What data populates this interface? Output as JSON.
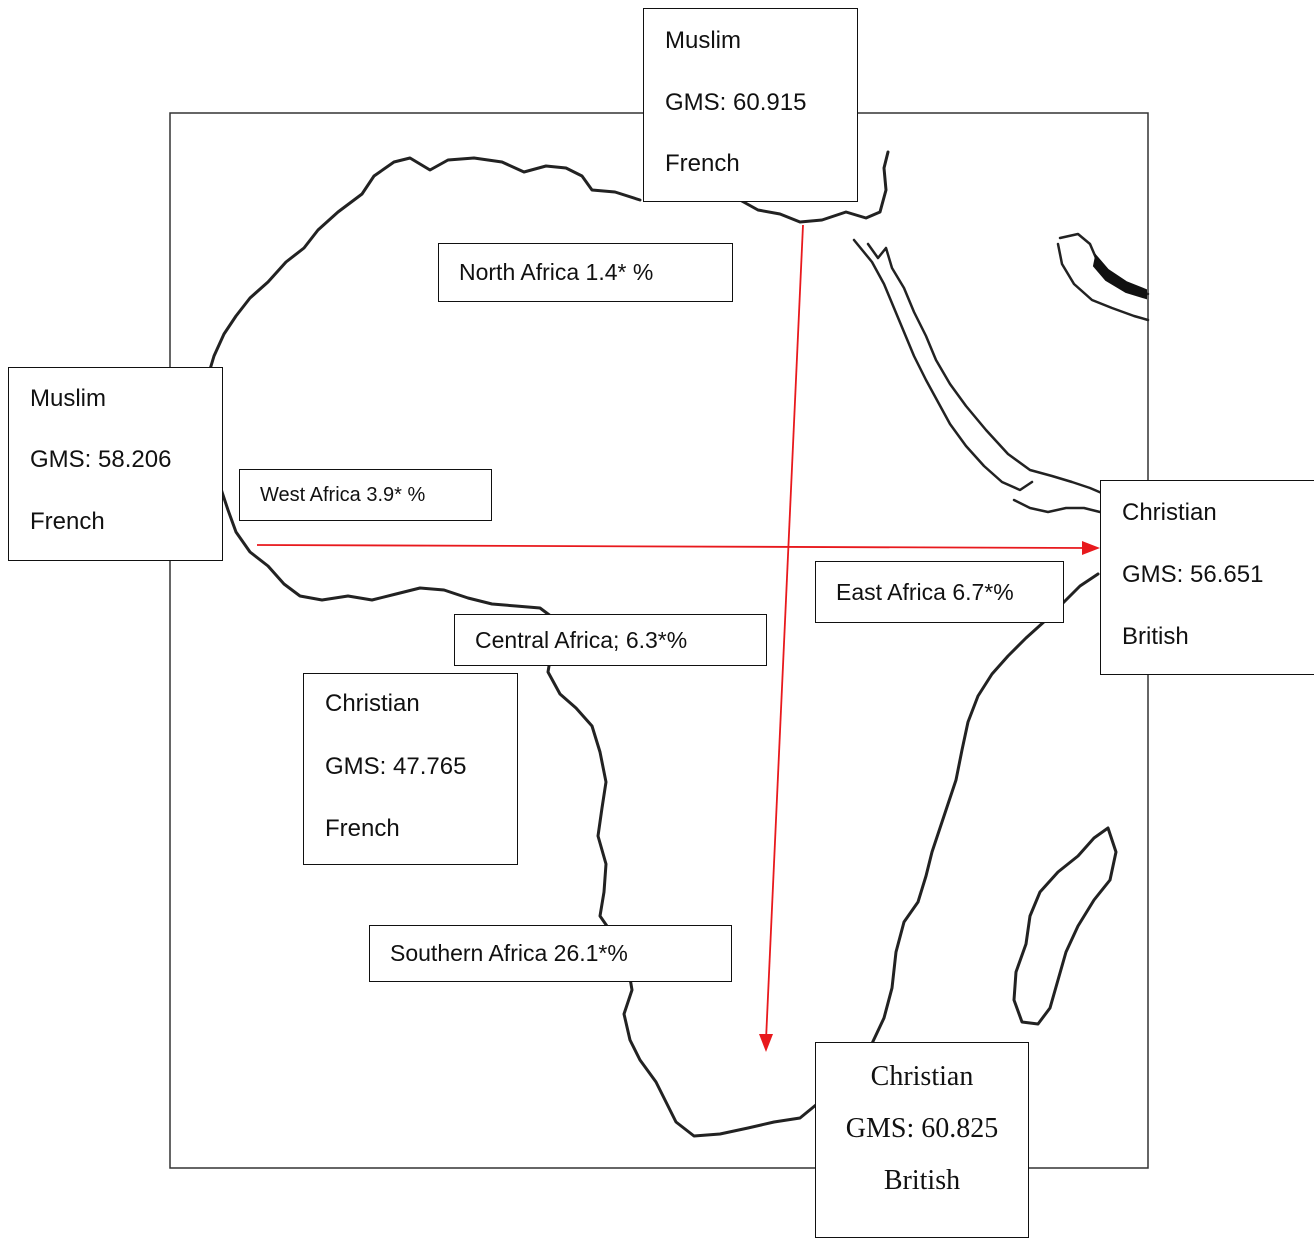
{
  "map": {
    "regions": [
      {
        "id": "north",
        "text": "North Africa 1.4* %"
      },
      {
        "id": "west",
        "text": "West Africa 3.9* %"
      },
      {
        "id": "east",
        "text": "East Africa 6.7*%"
      },
      {
        "id": "central",
        "text": "Central Africa; 6.3*%"
      },
      {
        "id": "southern",
        "text": "Southern Africa 26.1*%"
      }
    ],
    "info_boxes": [
      {
        "id": "top",
        "religion": "Muslim",
        "gms": "GMS: 60.915",
        "colonizer": "French"
      },
      {
        "id": "left",
        "religion": "Muslim",
        "gms": "GMS: 58.206",
        "colonizer": "French"
      },
      {
        "id": "right",
        "religion": "Christian",
        "gms": "GMS: 56.651",
        "colonizer": "British"
      },
      {
        "id": "center",
        "religion": "Christian",
        "gms": "GMS: 47.765",
        "colonizer": "French"
      },
      {
        "id": "bottom",
        "religion": "Christian",
        "gms": "GMS: 60.825",
        "colonizer": "British"
      }
    ],
    "colors": {
      "arrow": "#e8191d",
      "outline": "#222222"
    }
  }
}
